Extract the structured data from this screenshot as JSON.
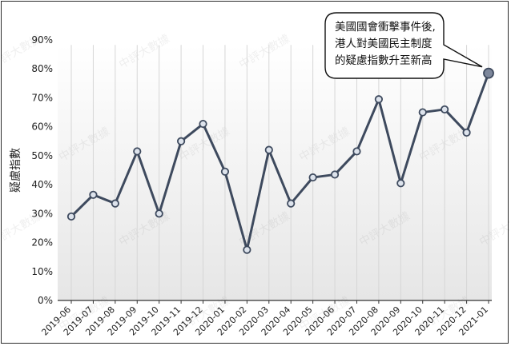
{
  "chart_data": {
    "type": "line",
    "title": "",
    "xlabel": "",
    "ylabel": "疑慮指數",
    "categories": [
      "2019-06",
      "2019-07",
      "2019-08",
      "2019-09",
      "2019-10",
      "2019-11",
      "2019-12",
      "2020-01",
      "2020-02",
      "2020-03",
      "2020-04",
      "2020-05",
      "2020-06",
      "2020-07",
      "2020-08",
      "2020-09",
      "2020-10",
      "2020-11",
      "2020-12",
      "2021-01"
    ],
    "series": [
      {
        "name": "",
        "values": [
          29,
          36.5,
          33.5,
          51.5,
          30,
          55,
          61,
          44.5,
          17.5,
          52,
          33.5,
          42.5,
          43.5,
          51.5,
          69.5,
          40.5,
          65,
          66,
          58,
          78.5
        ]
      }
    ],
    "ylim": [
      0,
      90
    ],
    "yticks": [
      0,
      10,
      20,
      30,
      40,
      50,
      60,
      70,
      80,
      90
    ],
    "ytick_labels": [
      "0%",
      "10%",
      "20%",
      "30%",
      "40%",
      "50%",
      "60%",
      "70%",
      "80%",
      "90%"
    ],
    "grid": "vertical",
    "line_color": "#3e4a5e",
    "marker_fill": "#dde3ec",
    "last_marker_fill": "#7d879b",
    "annotation": {
      "lines": [
        "美國國會衝擊事件後,",
        "港人對美國民主制度",
        "的疑慮指數升至新高"
      ],
      "target": "2021-01"
    },
    "watermark": "中評大數據"
  }
}
